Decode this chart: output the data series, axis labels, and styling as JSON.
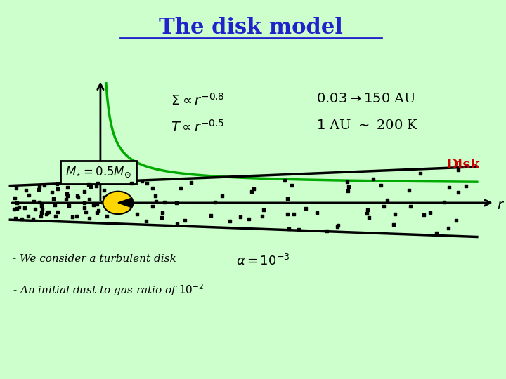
{
  "title": "The disk model",
  "title_color": "#2222CC",
  "background_color": "#CCFFCC",
  "eq1": "$\\Sigma \\propto r^{-0.8}$",
  "eq2": "$T \\propto r^{-0.5}$",
  "range_text": "$0.03 \\rightarrow 150$ AU",
  "temp_text": "$1$ AU $\\sim$ 200 K",
  "mass_eq": "$M_{\\star} = 0.5 M_{\\odot}$",
  "alpha_eq": "$\\alpha = 10^{-3}$",
  "disk_label": "Disk",
  "r_label": "$r$",
  "line1_text": "- We consider a turbulent disk",
  "line2_text": "- An initial dust to gas ratio of $10^{-2}$",
  "curve_color": "#00AA00",
  "disk_label_color": "#CC0000",
  "star_color": "#FFD700",
  "axis_color": "#000000",
  "text_color": "#000000"
}
